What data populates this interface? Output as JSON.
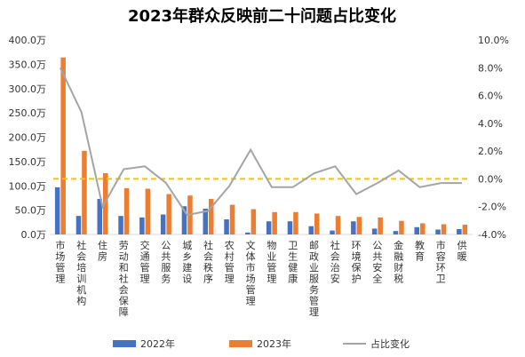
{
  "chart_data": {
    "type": "bar",
    "title": "2023年群众反映前二十问题占比变化",
    "categories": [
      "市场管理",
      "社会培训机构",
      "住房",
      "劳动和社会保障",
      "交通管理",
      "公共服务",
      "城乡建设",
      "社会秩序",
      "农村管理",
      "文体市场管理",
      "物业管理",
      "卫生健康",
      "邮政业服务管理",
      "社会治安",
      "环境保护",
      "公共安全",
      "金融财税",
      "教育",
      "市容环卫",
      "供暖"
    ],
    "series": [
      {
        "name": "2022年",
        "axis": "left",
        "kind": "bar",
        "color": "#4472C4",
        "values": [
          97,
          38,
          73,
          38,
          35,
          41,
          58,
          53,
          31,
          4,
          27,
          27,
          17,
          8,
          27,
          12,
          7,
          15,
          10,
          11
        ]
      },
      {
        "name": "2023年",
        "axis": "left",
        "kind": "bar",
        "color": "#ED7D31",
        "values": [
          364,
          172,
          126,
          95,
          94,
          83,
          80,
          73,
          61,
          52,
          46,
          46,
          43,
          38,
          36,
          35,
          28,
          23,
          21,
          20
        ]
      },
      {
        "name": "占比变化",
        "axis": "right",
        "kind": "line",
        "color": "#A5A5A5",
        "values": [
          8.0,
          4.8,
          -2.0,
          0.7,
          0.9,
          -0.3,
          -2.6,
          -2.3,
          -0.5,
          2.1,
          -0.6,
          -0.6,
          0.4,
          0.9,
          -1.1,
          -0.3,
          0.6,
          -0.6,
          -0.3,
          -0.3
        ]
      }
    ],
    "y_left": {
      "min": 0,
      "max": 400,
      "step": 50,
      "tick_labels": [
        "0.0万",
        "50.0万",
        "100.0万",
        "150.0万",
        "200.0万",
        "250.0万",
        "300.0万",
        "350.0万",
        "400.0万"
      ]
    },
    "y_right": {
      "min": -4,
      "max": 10,
      "step": 2,
      "tick_labels": [
        "-4.0%",
        "-2.0%",
        "0.0%",
        "2.0%",
        "4.0%",
        "6.0%",
        "8.0%",
        "10.0%"
      ]
    },
    "reference_line": {
      "value": 0,
      "axis": "right",
      "color": "#FFC000",
      "style": "dashed"
    },
    "grid": false,
    "legend_position": "bottom"
  }
}
